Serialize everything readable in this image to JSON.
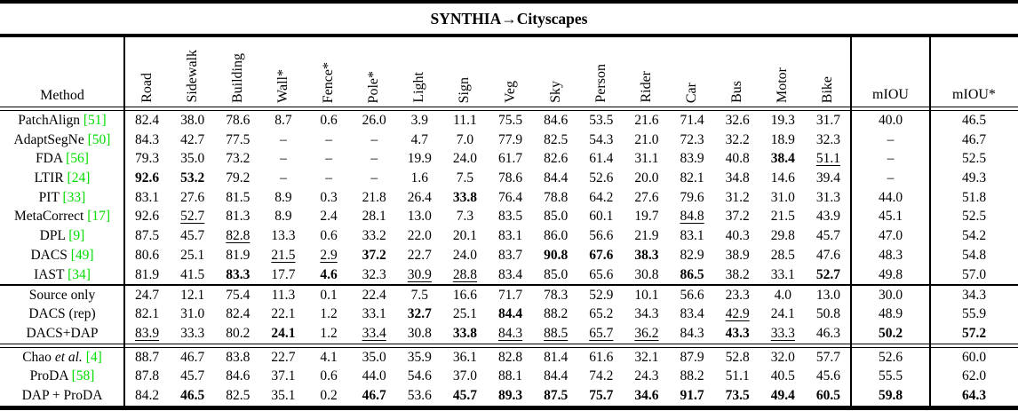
{
  "title": "SYNTHIA→Cityscapes",
  "colors": {
    "citation_green": "#00dd00"
  },
  "table": {
    "method_header": "Method",
    "class_headers": [
      "Road",
      "Sidewalk",
      "Building",
      "Wall*",
      "Fence*",
      "Pole*",
      "Light",
      "Sign",
      "Veg",
      "Sky",
      "Person",
      "Rider",
      "Car",
      "Bus",
      "Motor",
      "Bike"
    ],
    "summary_headers": [
      "mIOU",
      "mIOU*"
    ],
    "groups": [
      {
        "label": "uda-methods",
        "rows": [
          {
            "name": "PatchAlign",
            "cite": "[51]",
            "values": [
              "82.4",
              "38.0",
              "78.6",
              "8.7",
              "0.6",
              "26.0",
              "3.9",
              "11.1",
              "75.5",
              "84.6",
              "53.5",
              "21.6",
              "71.4",
              "32.6",
              "19.3",
              "31.7",
              "40.0",
              "46.5"
            ],
            "bold": [],
            "underline": []
          },
          {
            "name": "AdaptSegNe",
            "cite": "[50]",
            "values": [
              "84.3",
              "42.7",
              "77.5",
              "–",
              "–",
              "–",
              "4.7",
              "7.0",
              "77.9",
              "82.5",
              "54.3",
              "21.0",
              "72.3",
              "32.2",
              "18.9",
              "32.3",
              "–",
              "46.7"
            ],
            "bold": [],
            "underline": []
          },
          {
            "name": "FDA",
            "cite": "[56]",
            "values": [
              "79.3",
              "35.0",
              "73.2",
              "–",
              "–",
              "–",
              "19.9",
              "24.0",
              "61.7",
              "82.6",
              "61.4",
              "31.1",
              "83.9",
              "40.8",
              "38.4",
              "51.1",
              "–",
              "52.5"
            ],
            "bold": [
              14
            ],
            "underline": [
              15
            ]
          },
          {
            "name": "LTIR",
            "cite": "[24]",
            "values": [
              "92.6",
              "53.2",
              "79.2",
              "–",
              "–",
              "–",
              "1.6",
              "7.5",
              "78.6",
              "84.4",
              "52.6",
              "20.0",
              "82.1",
              "34.8",
              "14.6",
              "39.4",
              "–",
              "49.3"
            ],
            "bold": [
              0,
              1
            ],
            "underline": []
          },
          {
            "name": "PIT",
            "cite": "[33]",
            "values": [
              "83.1",
              "27.6",
              "81.5",
              "8.9",
              "0.3",
              "21.8",
              "26.4",
              "33.8",
              "76.4",
              "78.8",
              "64.2",
              "27.6",
              "79.6",
              "31.2",
              "31.0",
              "31.3",
              "44.0",
              "51.8"
            ],
            "bold": [
              7
            ],
            "underline": []
          },
          {
            "name": "MetaCorrect",
            "cite": "[17]",
            "values": [
              "92.6",
              "52.7",
              "81.3",
              "8.9",
              "2.4",
              "28.1",
              "13.0",
              "7.3",
              "83.5",
              "85.0",
              "60.1",
              "19.7",
              "84.8",
              "37.2",
              "21.5",
              "43.9",
              "45.1",
              "52.5"
            ],
            "bold": [],
            "underline": [
              1,
              12
            ]
          },
          {
            "name": "DPL",
            "cite": "[9]",
            "values": [
              "87.5",
              "45.7",
              "82.8",
              "13.3",
              "0.6",
              "33.2",
              "22.0",
              "20.1",
              "83.1",
              "86.0",
              "56.6",
              "21.9",
              "83.1",
              "40.3",
              "29.8",
              "45.7",
              "47.0",
              "54.2"
            ],
            "bold": [],
            "underline": [
              2
            ]
          },
          {
            "name": "DACS",
            "cite": "[49]",
            "values": [
              "80.6",
              "25.1",
              "81.9",
              "21.5",
              "2.9",
              "37.2",
              "22.7",
              "24.0",
              "83.7",
              "90.8",
              "67.6",
              "38.3",
              "82.9",
              "38.9",
              "28.5",
              "47.6",
              "48.3",
              "54.8"
            ],
            "bold": [
              5,
              9,
              10,
              11
            ],
            "underline": [
              3,
              4
            ]
          },
          {
            "name": "IAST",
            "cite": "[34]",
            "values": [
              "81.9",
              "41.5",
              "83.3",
              "17.7",
              "4.6",
              "32.3",
              "30.9",
              "28.8",
              "83.4",
              "85.0",
              "65.6",
              "30.8",
              "86.5",
              "38.2",
              "33.1",
              "52.7",
              "49.8",
              "57.0"
            ],
            "bold": [
              2,
              4,
              12,
              15
            ],
            "underline": [
              6,
              7
            ]
          }
        ]
      },
      {
        "label": "dacs-comparison",
        "rows": [
          {
            "name": "Source only",
            "cite": "",
            "values": [
              "24.7",
              "12.1",
              "75.4",
              "11.3",
              "0.1",
              "22.4",
              "7.5",
              "16.6",
              "71.7",
              "78.3",
              "52.9",
              "10.1",
              "56.6",
              "23.3",
              "4.0",
              "13.0",
              "30.0",
              "34.3"
            ],
            "bold": [],
            "underline": []
          },
          {
            "name": "DACS (rep)",
            "cite": "",
            "values": [
              "82.1",
              "31.0",
              "82.4",
              "22.1",
              "1.2",
              "33.1",
              "32.7",
              "25.1",
              "84.4",
              "88.2",
              "65.2",
              "34.3",
              "83.4",
              "42.9",
              "24.1",
              "50.8",
              "48.9",
              "55.9"
            ],
            "bold": [
              6,
              8
            ],
            "underline": [
              13
            ]
          },
          {
            "name": "DACS+DAP",
            "cite": "",
            "values": [
              "83.9",
              "33.3",
              "80.2",
              "24.1",
              "1.2",
              "33.4",
              "30.8",
              "33.8",
              "84.3",
              "88.5",
              "65.7",
              "36.2",
              "84.3",
              "43.3",
              "33.3",
              "46.3",
              "50.2",
              "57.2"
            ],
            "bold": [
              3,
              7,
              13,
              16,
              17
            ],
            "underline": [
              0,
              5,
              8,
              9,
              10,
              11,
              14
            ]
          }
        ]
      },
      {
        "label": "proda-comparison",
        "rows": [
          {
            "name": "Chao",
            "name_italic": "et al.",
            "cite": "[4]",
            "values": [
              "88.7",
              "46.7",
              "83.8",
              "22.7",
              "4.1",
              "35.0",
              "35.9",
              "36.1",
              "82.8",
              "81.4",
              "61.6",
              "32.1",
              "87.9",
              "52.8",
              "32.0",
              "57.7",
              "52.6",
              "60.0"
            ],
            "bold": [],
            "underline": []
          },
          {
            "name": "ProDA",
            "cite": "[58]",
            "values": [
              "87.8",
              "45.7",
              "84.6",
              "37.1",
              "0.6",
              "44.0",
              "54.6",
              "37.0",
              "88.1",
              "84.4",
              "74.2",
              "24.3",
              "88.2",
              "51.1",
              "40.5",
              "45.6",
              "55.5",
              "62.0"
            ],
            "bold": [],
            "underline": []
          },
          {
            "name": "DAP + ProDA",
            "cite": "",
            "values": [
              "84.2",
              "46.5",
              "82.5",
              "35.1",
              "0.2",
              "46.7",
              "53.6",
              "45.7",
              "89.3",
              "87.5",
              "75.7",
              "34.6",
              "91.7",
              "73.5",
              "49.4",
              "60.5",
              "59.8",
              "64.3"
            ],
            "bold": [
              1,
              5,
              7,
              8,
              9,
              10,
              11,
              12,
              13,
              14,
              15,
              16,
              17
            ],
            "underline": []
          }
        ]
      }
    ]
  }
}
